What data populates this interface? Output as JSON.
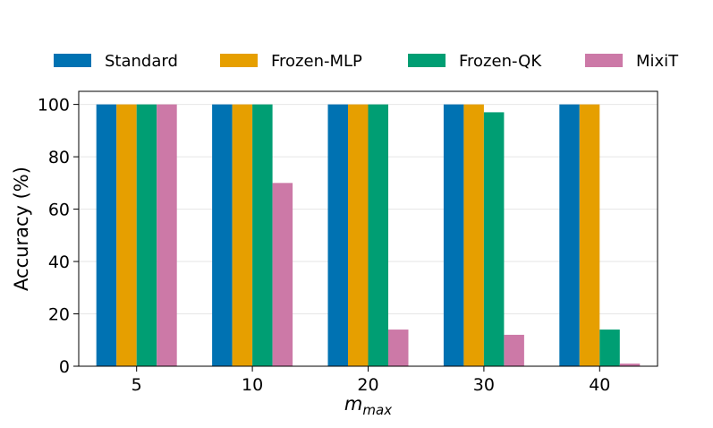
{
  "chart_data": {
    "type": "bar",
    "categories": [
      "5",
      "10",
      "20",
      "30",
      "40"
    ],
    "series": [
      {
        "name": "Standard",
        "color": "#0072b2",
        "values": [
          100,
          100,
          100,
          100,
          100
        ]
      },
      {
        "name": "Frozen-MLP",
        "color": "#e69f00",
        "values": [
          100,
          100,
          100,
          100,
          100
        ]
      },
      {
        "name": "Frozen-QK",
        "color": "#009e73",
        "values": [
          100,
          100,
          100,
          97,
          14
        ]
      },
      {
        "name": "MixiT",
        "color": "#cc79a7",
        "values": [
          100,
          70,
          14,
          12,
          1
        ]
      }
    ],
    "xlabel": "m",
    "xlabel_subscript": "max",
    "ylabel": "Accuracy (%)",
    "ylim": [
      0,
      105
    ],
    "yticks": [
      0,
      20,
      40,
      60,
      80,
      100
    ],
    "grid": "horizontal",
    "legend": "top"
  }
}
